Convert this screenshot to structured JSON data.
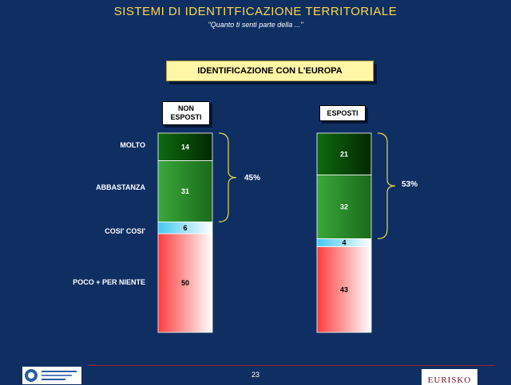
{
  "header": {
    "title": "SISTEMI DI IDENTITFICAZIONE TERRITORIALE",
    "subtitle": "\"Quanto ti senti parte della ...\""
  },
  "section_title": "IDENTIFICAZIONE CON L'EUROPA",
  "footer": {
    "page_number": "23",
    "brand": "EURISKO"
  },
  "colors": {
    "background": "#0f2f63",
    "molto": "#0b4a0b",
    "abbastanza": "#2a8a2a",
    "cosi_cosi": "#7fd8f5",
    "poco": "#ff5a5a",
    "bracket": "#e8d84a"
  },
  "chart_data": {
    "type": "bar",
    "stacked": true,
    "categories": [
      "NON ESPOSTI",
      "ESPOSTI"
    ],
    "series": [
      {
        "name": "MOLTO",
        "values": [
          14,
          21
        ]
      },
      {
        "name": "ABBASTANZA",
        "values": [
          31,
          32
        ]
      },
      {
        "name": "COSI' COSI'",
        "values": [
          6,
          4
        ]
      },
      {
        "name": "POCO + PER NIENTE",
        "values": [
          50,
          43
        ]
      }
    ],
    "bracket_totals": [
      "45%",
      "53%"
    ],
    "group_labels": [
      [
        "NON",
        "ESPOSTI"
      ],
      [
        "ESPOSTI"
      ]
    ]
  }
}
